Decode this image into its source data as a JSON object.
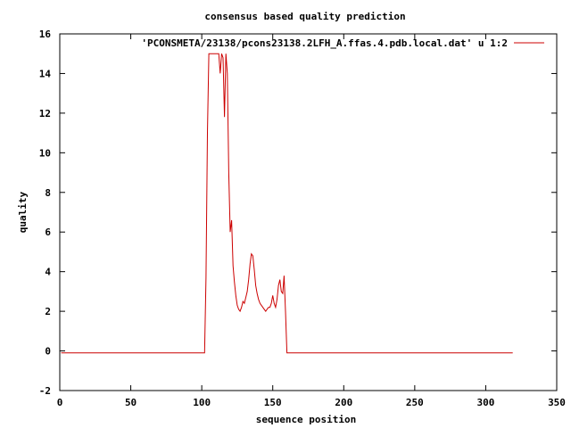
{
  "chart_data": {
    "type": "line",
    "title": "consensus based quality prediction",
    "xlabel": "sequence position",
    "ylabel": "quality",
    "xlim": [
      0,
      350
    ],
    "ylim": [
      -2,
      16
    ],
    "xticks": [
      0,
      50,
      100,
      150,
      200,
      250,
      300,
      350
    ],
    "yticks": [
      -2,
      0,
      2,
      4,
      6,
      8,
      10,
      12,
      14,
      16
    ],
    "grid": false,
    "legend_position": "top-right",
    "series": [
      {
        "name": "'PCONSMETA/23138/pcons23138.2LFH_A.ffas.4.pdb.local.dat' u 1:2",
        "color": "#cc0000",
        "x": [
          1,
          10,
          20,
          30,
          40,
          50,
          60,
          70,
          80,
          90,
          100,
          101,
          102,
          103,
          104,
          105,
          106,
          107,
          108,
          109,
          110,
          111,
          112,
          113,
          114,
          115,
          116,
          117,
          118,
          119,
          120,
          121,
          122,
          123,
          124,
          125,
          126,
          127,
          128,
          129,
          130,
          131,
          132,
          133,
          134,
          135,
          136,
          137,
          138,
          139,
          140,
          141,
          142,
          143,
          144,
          145,
          146,
          147,
          148,
          149,
          150,
          151,
          152,
          153,
          154,
          155,
          156,
          157,
          158,
          159,
          160,
          161,
          162,
          163,
          164,
          165,
          166,
          170,
          180,
          200,
          220,
          240,
          260,
          280,
          300,
          319
        ],
        "y": [
          -0.1,
          -0.1,
          -0.1,
          -0.1,
          -0.1,
          -0.1,
          -0.1,
          -0.1,
          -0.1,
          -0.1,
          -0.1,
          -0.1,
          -0.1,
          3.7,
          11.0,
          15.0,
          15.0,
          15.0,
          15.0,
          15.0,
          15.0,
          15.0,
          15.0,
          14.0,
          15.0,
          14.8,
          11.8,
          15.0,
          14.0,
          9.0,
          6.0,
          6.6,
          4.3,
          3.5,
          2.8,
          2.3,
          2.1,
          2.0,
          2.2,
          2.5,
          2.4,
          2.7,
          3.0,
          3.6,
          4.4,
          4.9,
          4.8,
          4.1,
          3.3,
          2.9,
          2.6,
          2.4,
          2.3,
          2.2,
          2.1,
          2.0,
          2.1,
          2.2,
          2.2,
          2.4,
          2.8,
          2.4,
          2.2,
          2.6,
          3.3,
          3.6,
          3.0,
          2.9,
          3.8,
          2.0,
          -0.1,
          -0.1,
          -0.1,
          -0.1,
          -0.1,
          -0.1,
          -0.1,
          -0.1,
          -0.1,
          -0.1,
          -0.1,
          -0.1,
          -0.1,
          -0.1,
          -0.1,
          -0.1
        ]
      }
    ]
  }
}
